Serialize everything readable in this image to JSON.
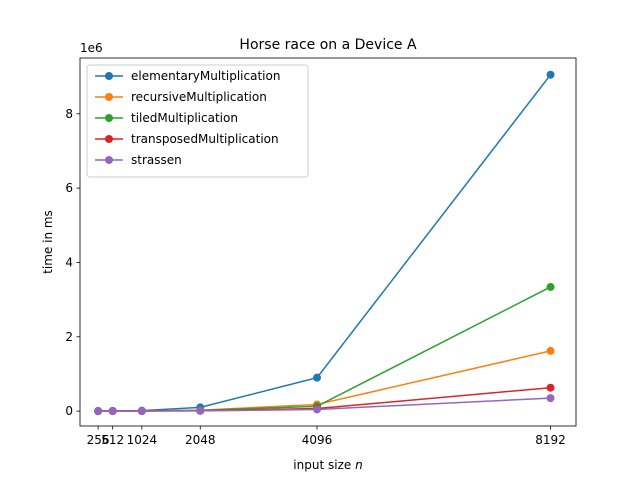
{
  "chart_data": {
    "type": "line",
    "title": "Horse race on a Device A",
    "xlabel": "input size",
    "xlabel_var": "n",
    "ylabel": "time in ms",
    "y_offset_label": "1e6",
    "x": [
      256,
      512,
      1024,
      2048,
      4096,
      8192
    ],
    "xticks": [
      "256",
      "512",
      "1024",
      "2048",
      "4096",
      "8192"
    ],
    "ylim": [
      -400000,
      9500000
    ],
    "yticks": [
      0,
      2000000,
      4000000,
      6000000,
      8000000
    ],
    "ytick_labels": [
      "0",
      "2",
      "4",
      "6",
      "8"
    ],
    "grid": false,
    "legend_position": "upper-left",
    "series": [
      {
        "name": "elementaryMultiplication",
        "color": "#1f77b4",
        "values": [
          1000,
          8000,
          12000,
          100000,
          900000,
          9050000
        ]
      },
      {
        "name": "recursiveMultiplication",
        "color": "#ff7f0e",
        "values": [
          500,
          3000,
          5000,
          25000,
          180000,
          1620000
        ]
      },
      {
        "name": "tiledMultiplication",
        "color": "#2ca02c",
        "values": [
          400,
          2500,
          4000,
          20000,
          130000,
          3340000
        ]
      },
      {
        "name": "transposedMultiplication",
        "color": "#d62728",
        "values": [
          300,
          1500,
          3000,
          10000,
          70000,
          630000
        ]
      },
      {
        "name": "strassen",
        "color": "#9467bd",
        "values": [
          200,
          1000,
          2000,
          8000,
          45000,
          350000
        ]
      }
    ]
  }
}
